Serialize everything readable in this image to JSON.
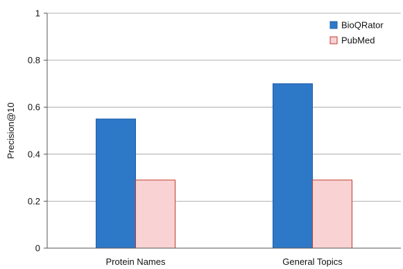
{
  "chart_data": {
    "type": "bar",
    "categories": [
      "Protein Names",
      "General Topics"
    ],
    "series": [
      {
        "name": "BioQRator",
        "values": [
          0.55,
          0.7
        ],
        "color": "#2e78c8",
        "stroke": "#1e5ea8"
      },
      {
        "name": "PubMed",
        "values": [
          0.29,
          0.29
        ],
        "color": "#f9d3d3",
        "stroke": "#c0392b"
      }
    ],
    "xlabel": "",
    "ylabel": "Precision@10",
    "ylim": [
      0,
      1
    ],
    "yticks": [
      0,
      0.2,
      0.4,
      0.6,
      0.8,
      1
    ],
    "ytick_labels": [
      "0",
      "0.2",
      "0.4",
      "0.6",
      "0.8",
      "1"
    ],
    "grid": true,
    "legend_position": "top-right"
  }
}
